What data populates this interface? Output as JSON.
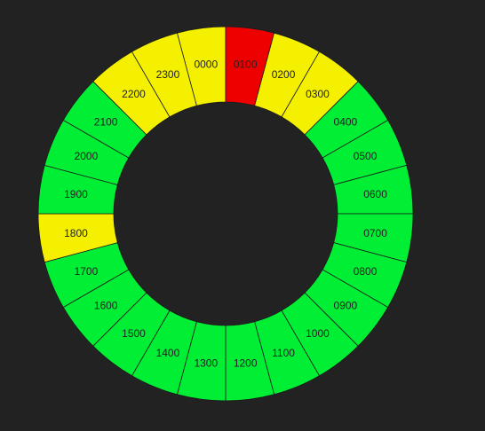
{
  "colors": {
    "background": "#222222",
    "ok": "#00ee33",
    "warning": "#f4f000",
    "alert": "#ee0000"
  },
  "hours": [
    {
      "label": "0000",
      "status": "warning"
    },
    {
      "label": "0100",
      "status": "alert"
    },
    {
      "label": "0200",
      "status": "warning"
    },
    {
      "label": "0300",
      "status": "warning"
    },
    {
      "label": "0400",
      "status": "ok"
    },
    {
      "label": "0500",
      "status": "ok"
    },
    {
      "label": "0600",
      "status": "ok"
    },
    {
      "label": "0700",
      "status": "ok"
    },
    {
      "label": "0800",
      "status": "ok"
    },
    {
      "label": "0900",
      "status": "ok"
    },
    {
      "label": "1000",
      "status": "ok"
    },
    {
      "label": "1100",
      "status": "ok"
    },
    {
      "label": "1200",
      "status": "ok"
    },
    {
      "label": "1300",
      "status": "ok"
    },
    {
      "label": "1400",
      "status": "ok"
    },
    {
      "label": "1500",
      "status": "ok"
    },
    {
      "label": "1600",
      "status": "ok"
    },
    {
      "label": "1700",
      "status": "ok"
    },
    {
      "label": "1800",
      "status": "warning"
    },
    {
      "label": "1900",
      "status": "ok"
    },
    {
      "label": "2000",
      "status": "ok"
    },
    {
      "label": "2100",
      "status": "ok"
    },
    {
      "label": "2200",
      "status": "warning"
    },
    {
      "label": "2300",
      "status": "warning"
    }
  ]
}
